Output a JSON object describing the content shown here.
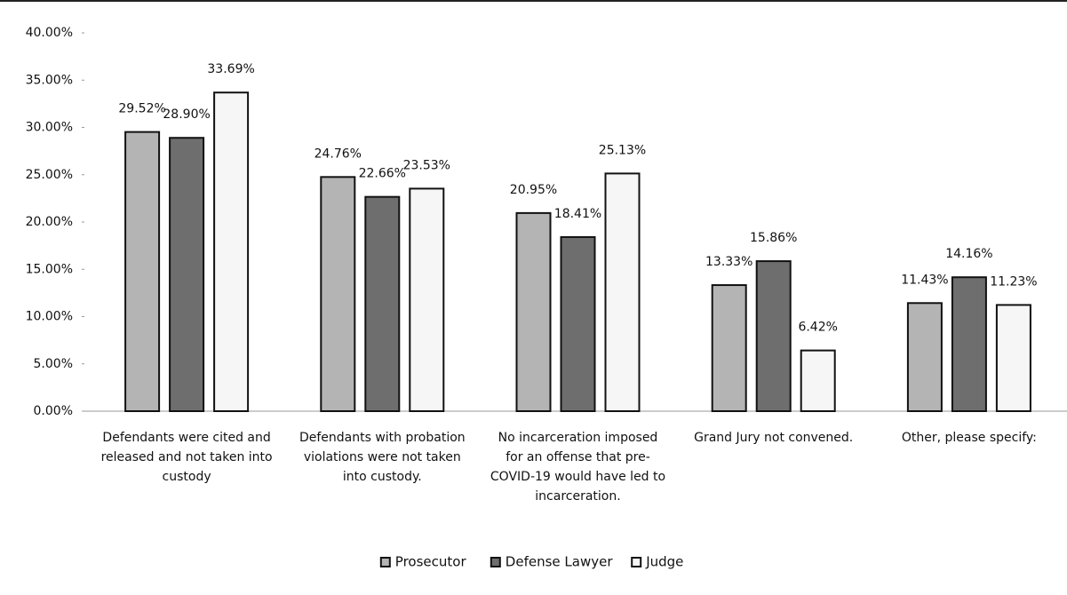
{
  "chart_data": {
    "type": "bar",
    "categories": [
      "Defendants were cited and released and not taken into custody",
      "Defendants with probation violations were not taken into custody.",
      "No incarceration imposed for an offense that pre-COVID-19 would have led to incarceration.",
      "Grand Jury not convened.",
      "Other, please specify:"
    ],
    "series": [
      {
        "name": "Prosecutor",
        "color": "#b4b4b4",
        "values": [
          29.52,
          24.76,
          20.95,
          13.33,
          11.43
        ],
        "value_labels": [
          "29.52%",
          "24.76%",
          "20.95%",
          "13.33%",
          "11.43%"
        ]
      },
      {
        "name": "Defense Lawyer",
        "color": "#6e6e6e",
        "values": [
          28.9,
          22.66,
          18.41,
          15.86,
          14.16
        ],
        "value_labels": [
          "28.90%",
          "22.66%",
          "18.41%",
          "15.86%",
          "14.16%"
        ]
      },
      {
        "name": "Judge",
        "color": "#f6f6f6",
        "values": [
          33.69,
          23.53,
          25.13,
          6.42,
          11.23
        ],
        "value_labels": [
          "33.69%",
          "23.53%",
          "25.13%",
          "6.42%",
          "11.23%"
        ]
      }
    ],
    "ylim": [
      0,
      40
    ],
    "yticks": [
      {
        "value": 0,
        "label": "0.00%"
      },
      {
        "value": 5,
        "label": "5.00%"
      },
      {
        "value": 10,
        "label": "10.00%"
      },
      {
        "value": 15,
        "label": "15.00%"
      },
      {
        "value": 20,
        "label": "20.00%"
      },
      {
        "value": 25,
        "label": "25.00%"
      },
      {
        "value": 30,
        "label": "30.00%"
      },
      {
        "value": 35,
        "label": "35.00%"
      },
      {
        "value": 40,
        "label": "40.00%"
      }
    ],
    "grid": false,
    "legend": "bottom"
  }
}
